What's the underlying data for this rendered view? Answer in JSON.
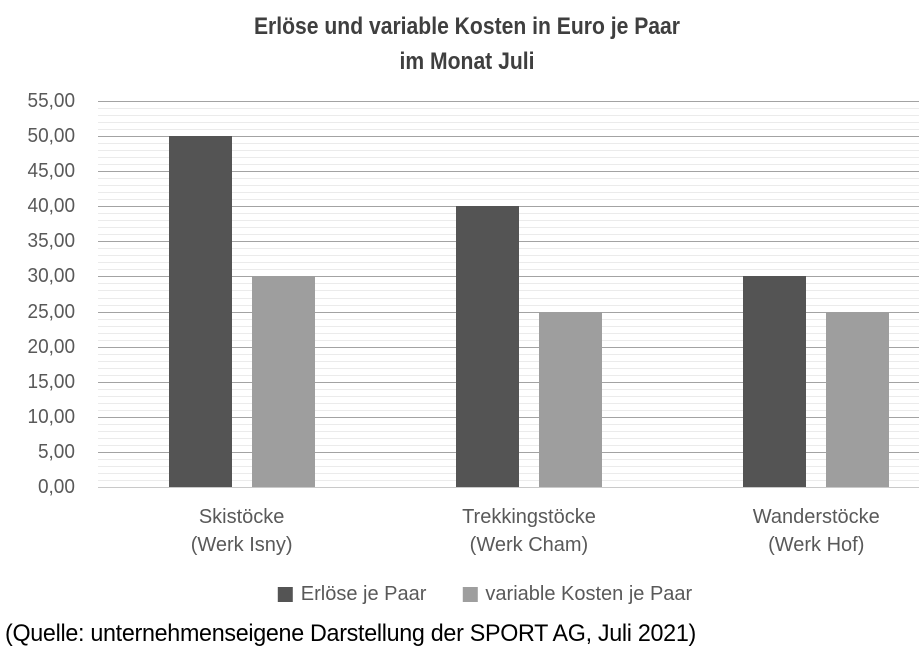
{
  "title": {
    "line1": "Erlöse und variable Kosten in Euro je Paar",
    "line2": "im Monat Juli"
  },
  "source_caption": "(Quelle: unternehmenseigene Darstellung der SPORT AG, Juli 2021)",
  "chart_data": {
    "type": "bar",
    "title": "Erlöse und variable Kosten in Euro je Paar im Monat Juli",
    "categories": [
      {
        "line1": "Skistöcke",
        "line2": "(Werk Isny)"
      },
      {
        "line1": "Trekkingstöcke",
        "line2": "(Werk Cham)"
      },
      {
        "line1": "Wanderstöcke",
        "line2": "(Werk Hof)"
      }
    ],
    "series": [
      {
        "name": "Erlöse je Paar",
        "values": [
          50.0,
          40.0,
          30.0
        ],
        "color": "#545454"
      },
      {
        "name": "variable Kosten je Paar",
        "values": [
          30.0,
          25.0,
          25.0
        ],
        "color": "#9e9e9e"
      }
    ],
    "xlabel": "",
    "ylabel": "",
    "ylim": [
      0,
      55
    ],
    "y_major_step": 5,
    "y_minor_step": 1,
    "y_tick_labels": [
      "0,00",
      "5,00",
      "10,00",
      "15,00",
      "20,00",
      "25,00",
      "30,00",
      "35,00",
      "40,00",
      "45,00",
      "50,00",
      "55,00"
    ],
    "grid": {
      "major": true,
      "minor": true
    },
    "legend_position": "bottom",
    "colors": {
      "major_gridline": "#a3a3a3",
      "minor_gridline": "#ebebeb",
      "axis_line": "#c9c9c9",
      "label_text": "#595959",
      "title_text": "#3f3f3f"
    }
  }
}
